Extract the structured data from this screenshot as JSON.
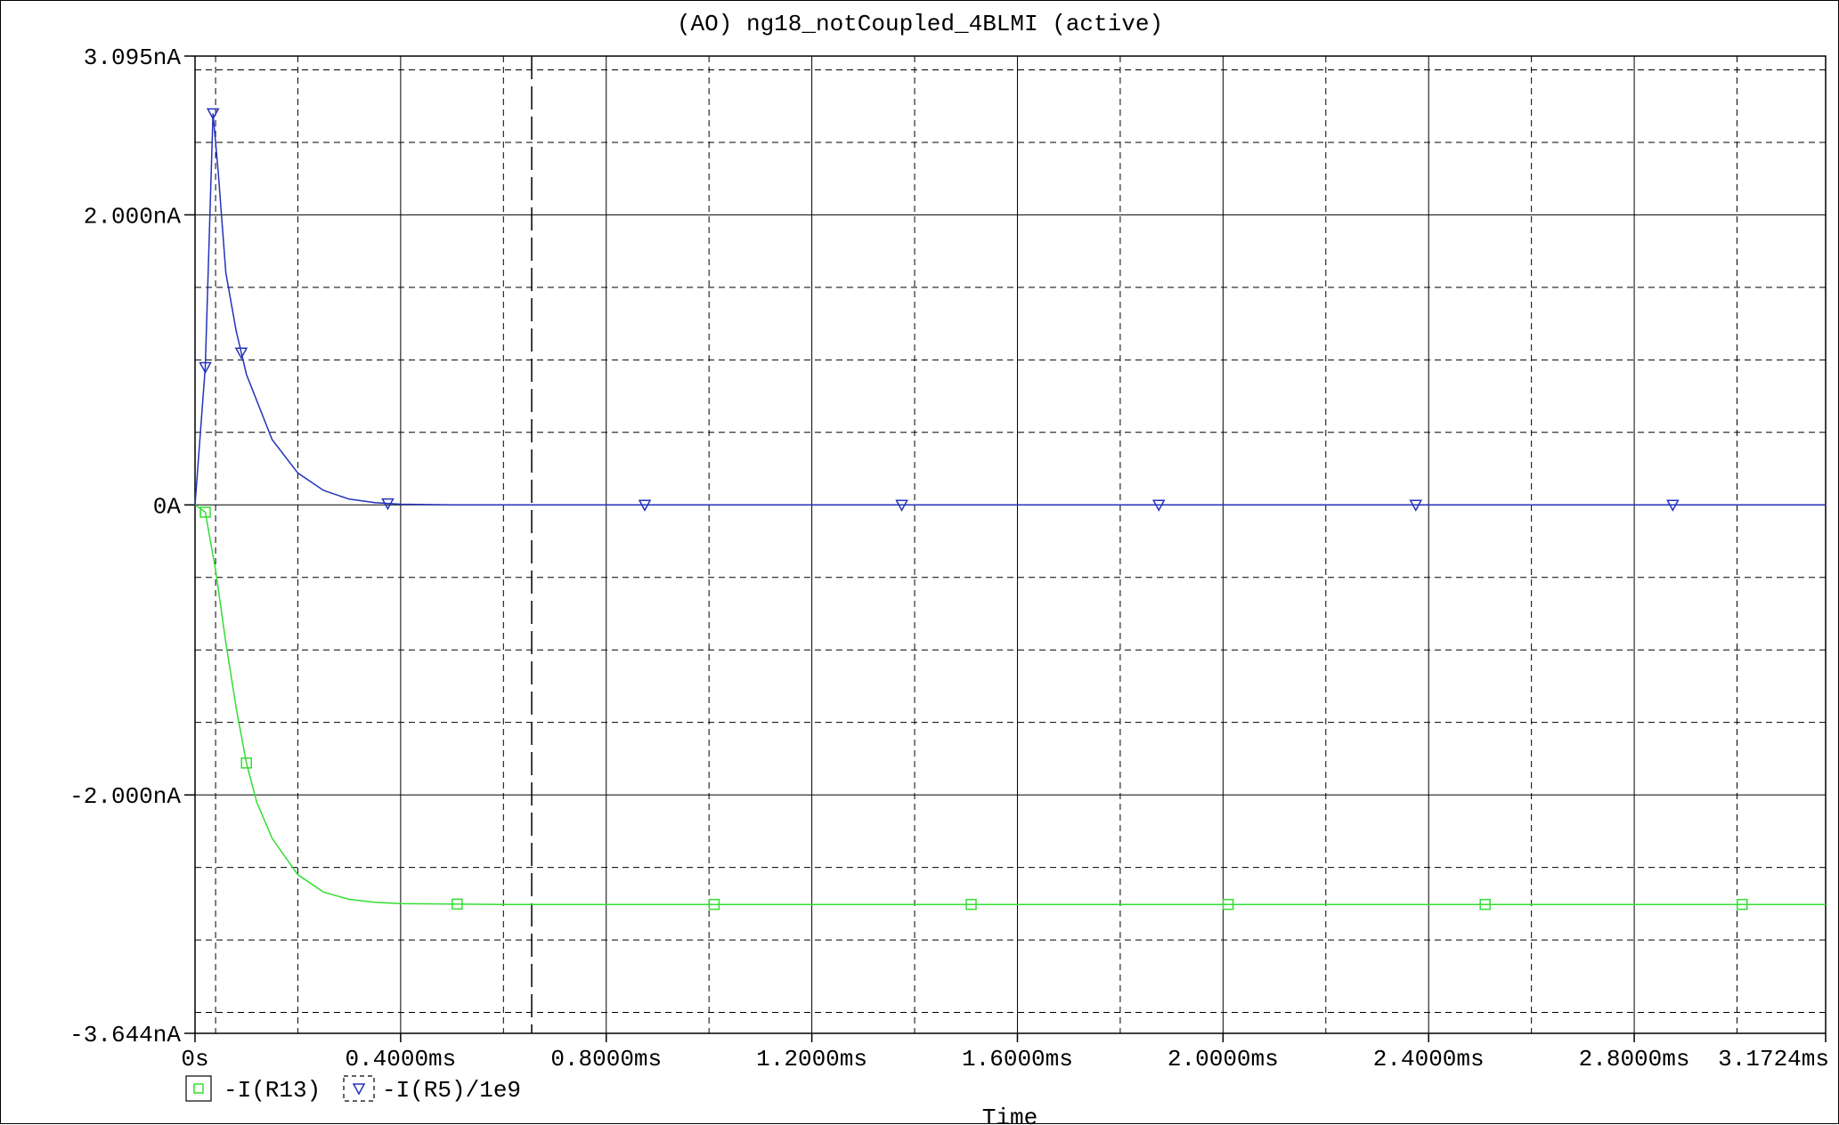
{
  "window": {
    "title": "(AO) ng18_notCoupled_4BLMI (active)"
  },
  "chart_data": {
    "type": "line",
    "title": "(AO) ng18_notCoupled_4BLMI (active)",
    "xlabel": "Time",
    "ylabel": "",
    "xlim": [
      0,
      3.1724
    ],
    "ylim": [
      -3.644,
      3.095
    ],
    "x_unit": "ms",
    "y_unit": "nA",
    "grid": true,
    "legend_position": "bottom-left",
    "x_ticks": [
      {
        "value": 0,
        "label": "0s"
      },
      {
        "value": 0.4,
        "label": "0.4000ms"
      },
      {
        "value": 0.8,
        "label": "0.8000ms"
      },
      {
        "value": 1.2,
        "label": "1.2000ms"
      },
      {
        "value": 1.6,
        "label": "1.6000ms"
      },
      {
        "value": 2.0,
        "label": "2.0000ms"
      },
      {
        "value": 2.4,
        "label": "2.4000ms"
      },
      {
        "value": 2.8,
        "label": "2.8000ms"
      },
      {
        "value": 3.1724,
        "label": "3.1724ms"
      }
    ],
    "y_ticks": [
      {
        "value": 3.095,
        "label": "3.095nA"
      },
      {
        "value": 2.0,
        "label": "2.000nA"
      },
      {
        "value": 0,
        "label": "0A"
      },
      {
        "value": -2.0,
        "label": "-2.000nA"
      },
      {
        "value": -3.644,
        "label": "-3.644nA"
      }
    ],
    "x_minor_grid": [
      0.04,
      0.2,
      0.6,
      1.0,
      1.4,
      1.8,
      2.2,
      2.6,
      3.0
    ],
    "y_minor_grid": [
      3.0,
      2.5,
      1.5,
      1.0,
      0.5,
      -0.5,
      -1.0,
      -1.5,
      -2.5,
      -3.0,
      -3.5
    ],
    "cursor_x": 0.655,
    "series": [
      {
        "name": "-I(R13)",
        "color": "#33dd33",
        "marker": "square",
        "values": [
          [
            0,
            0
          ],
          [
            0.02,
            -0.05
          ],
          [
            0.04,
            -0.45
          ],
          [
            0.06,
            -0.95
          ],
          [
            0.08,
            -1.4
          ],
          [
            0.1,
            -1.78
          ],
          [
            0.12,
            -2.05
          ],
          [
            0.15,
            -2.3
          ],
          [
            0.2,
            -2.55
          ],
          [
            0.25,
            -2.67
          ],
          [
            0.3,
            -2.72
          ],
          [
            0.35,
            -2.74
          ],
          [
            0.4,
            -2.75
          ],
          [
            0.6,
            -2.755
          ],
          [
            1.0,
            -2.755
          ],
          [
            2.0,
            -2.755
          ],
          [
            3.1724,
            -2.755
          ]
        ],
        "markers_x": [
          0.02,
          0.1,
          0.51,
          1.01,
          1.51,
          2.01,
          2.51,
          3.01
        ]
      },
      {
        "name": "-I(R5)/1e9",
        "color": "#2233bb",
        "marker": "triangle-down",
        "values": [
          [
            0,
            0
          ],
          [
            0.02,
            0.95
          ],
          [
            0.035,
            2.7
          ],
          [
            0.045,
            2.3
          ],
          [
            0.06,
            1.6
          ],
          [
            0.08,
            1.2
          ],
          [
            0.1,
            0.9
          ],
          [
            0.15,
            0.45
          ],
          [
            0.2,
            0.22
          ],
          [
            0.25,
            0.1
          ],
          [
            0.3,
            0.04
          ],
          [
            0.35,
            0.015
          ],
          [
            0.4,
            0.005
          ],
          [
            0.5,
            0
          ],
          [
            3.1724,
            0
          ]
        ],
        "markers_x": [
          0.02,
          0.035,
          0.09,
          0.375,
          0.875,
          1.375,
          1.875,
          2.375,
          2.875
        ]
      }
    ]
  }
}
